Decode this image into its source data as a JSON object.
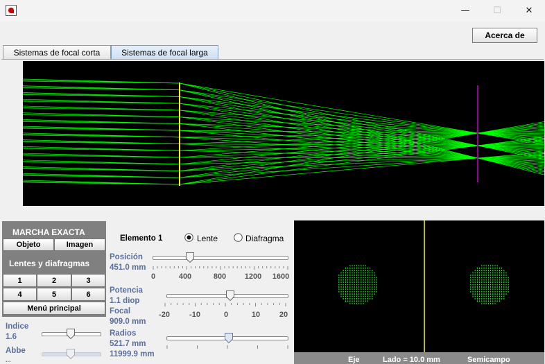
{
  "window": {
    "min_glyph": "—",
    "max_glyph": "☐",
    "close_glyph": "✕"
  },
  "toolbar": {
    "about_label": "Acerca de"
  },
  "tabs": [
    {
      "label": "Sistemas de focal corta",
      "selected": false
    },
    {
      "label": "Sistemas de focal larga",
      "selected": true
    }
  ],
  "marcha": {
    "title": "MARCHA EXACTA",
    "objeto_label": "Objeto",
    "imagen_label": "Imagen",
    "lentes_title": "Lentes y diafragmas",
    "numbers": [
      "1",
      "2",
      "3",
      "4",
      "5",
      "6"
    ],
    "menu_label": "Menú principal"
  },
  "material": {
    "indice_label": "Indice",
    "indice_value": "1.6",
    "indice_level": 0.5,
    "abbe_label": "Abbe",
    "abbe_value": "...",
    "abbe_level": 0.5
  },
  "element": {
    "title": "Elemento 1",
    "type_options": [
      "Lente",
      "Diafragma"
    ],
    "selected_type": "Lente",
    "posicion_label": "Posición",
    "posicion_value": "451.0 mm",
    "posicion_ticks": [
      "0",
      "400",
      "800",
      "1200",
      "1600"
    ],
    "posicion_level": 0.28,
    "potencia_label": "Potencia",
    "potencia_value": "1.1 diop",
    "focal_label": "Focal",
    "focal_value": "909.0 mm",
    "potencia_ticks": [
      "-20",
      "-10",
      "0",
      "10",
      "20"
    ],
    "potencia_level": 0.53,
    "radios_label": "Radios",
    "radios_value": "521.7 mm",
    "radios_value2": "11999.9 mm",
    "radios_level": 0.52
  },
  "spot_footer": {
    "eje_label": "Eje",
    "lado_label": "Lado = 10.0 mm",
    "semicampo_label": "Semicampo"
  },
  "colors": {
    "rays": "#00ff00",
    "lens": "#ffff00",
    "image_plane": "#cc00cc",
    "panel_gray": "#808080",
    "label_blue": "#5a6fa0"
  }
}
